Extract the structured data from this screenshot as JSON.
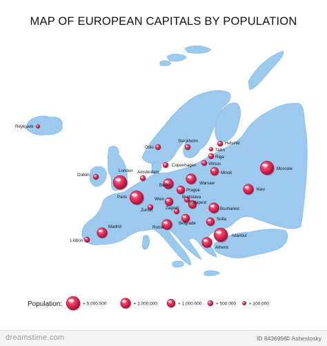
{
  "title": "MAP OF EUROPEAN CAPITALS BY POPULATION",
  "colors": {
    "land": "#9cc9ee",
    "land_edge": "#7fb3e0",
    "marker": "#e8224f",
    "marker_light": "#ff8fa8",
    "marker_dark": "#b5103a"
  },
  "cities": [
    {
      "name": "Reykjavik",
      "tier": "100000"
    },
    {
      "name": "Oslo",
      "tier": "500000"
    },
    {
      "name": "Stockholm",
      "tier": "500000"
    },
    {
      "name": "Helsinki",
      "tier": "500000"
    },
    {
      "name": "Tallin",
      "tier": "100000"
    },
    {
      "name": "Riga",
      "tier": "500000"
    },
    {
      "name": "Vilnius",
      "tier": "500000"
    },
    {
      "name": "Copenhagen",
      "tier": "500000"
    },
    {
      "name": "Moscow",
      "tier": "5000000"
    },
    {
      "name": "Minsk",
      "tier": "1000000"
    },
    {
      "name": "Dublin",
      "tier": "500000"
    },
    {
      "name": "London",
      "tier": "5000000"
    },
    {
      "name": "Amsterdam",
      "tier": "500000"
    },
    {
      "name": "Berlin",
      "tier": "2000000"
    },
    {
      "name": "Warsaw",
      "tier": "2000000"
    },
    {
      "name": "Kiev",
      "tier": "2000000"
    },
    {
      "name": "Paris",
      "tier": "5000000"
    },
    {
      "name": "Prague",
      "tier": "1000000"
    },
    {
      "name": "Bratislava",
      "tier": "500000"
    },
    {
      "name": "Wien",
      "tier": "1000000"
    },
    {
      "name": "Budapest",
      "tier": "1000000"
    },
    {
      "name": "Zurich",
      "tier": "500000"
    },
    {
      "name": "Zagreb",
      "tier": "500000"
    },
    {
      "name": "Bucharest",
      "tier": "2000000"
    },
    {
      "name": "Belgrade",
      "tier": "1000000"
    },
    {
      "name": "Sofia",
      "tier": "1000000"
    },
    {
      "name": "Madrid",
      "tier": "2000000"
    },
    {
      "name": "Rome",
      "tier": "2000000"
    },
    {
      "name": "Lisbon",
      "tier": "500000"
    },
    {
      "name": "Istanbul",
      "tier": "5000000"
    },
    {
      "name": "Athens",
      "tier": "2000000"
    }
  ],
  "legend": {
    "label": "Population:",
    "items": [
      {
        "tier": "5000000",
        "label": "+ 5.000.000"
      },
      {
        "tier": "2000000",
        "label": "+ 2.000.000"
      },
      {
        "tier": "1000000",
        "label": "+ 1.000.000"
      },
      {
        "tier": "500000",
        "label": "+ 500.000"
      },
      {
        "tier": "100000",
        "label": "+ 100.000"
      }
    ]
  },
  "footer": {
    "logo": "dreamstime.com",
    "id": "ID 8436996",
    "author": "© Ashestosky"
  }
}
